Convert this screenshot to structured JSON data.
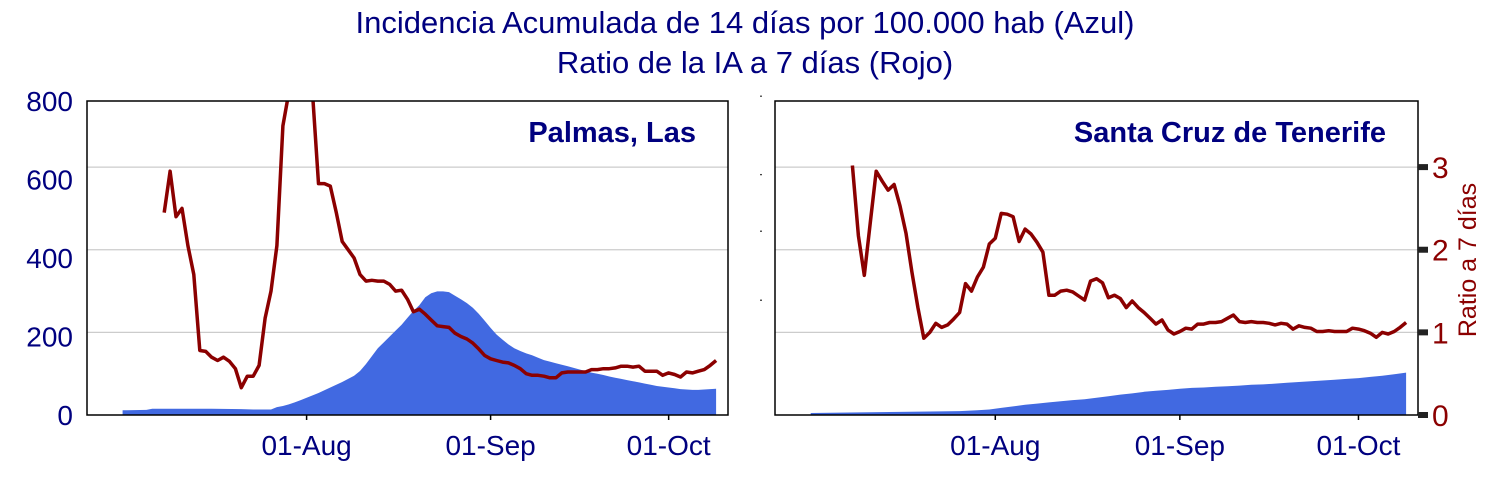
{
  "title_line1": "Incidencia Acumulada de 14 días por 100.000 hab (Azul)",
  "title_line2": "Ratio de la IA a 7 días (Rojo)",
  "colors": {
    "title": "#00007f",
    "incidence": "#4169e1",
    "ratio": "#8b0000",
    "grid": "#cccccc",
    "axis": "#000000"
  },
  "chart_data": [
    {
      "type": "area",
      "panel_label": "Palmas, Las",
      "x_tick_labels": [
        "01-Aug",
        "01-Sep",
        "01-Oct"
      ],
      "x_tick_days": [
        31,
        62,
        92
      ],
      "xlim": [
        -6,
        102
      ],
      "y_left_ticks": [
        "0",
        "200",
        "400",
        "600",
        "800"
      ],
      "y_left_values": [
        0,
        200,
        400,
        600,
        800
      ],
      "y_left_lim": [
        0,
        800
      ],
      "y_right_lim": [
        0,
        3.8
      ],
      "grid_y_ratio": [
        1,
        2,
        3
      ],
      "incidence_series": {
        "x": [
          0,
          4,
          5,
          6,
          10,
          15,
          20,
          22,
          25,
          26,
          27,
          28,
          29,
          30,
          33,
          35,
          37,
          39,
          40,
          41,
          42,
          43,
          44,
          45,
          46,
          47,
          48,
          49,
          50,
          51,
          52,
          53,
          54,
          55,
          56,
          57,
          58,
          59,
          60,
          61,
          62,
          63,
          64,
          65,
          66,
          67,
          68,
          69,
          70,
          71,
          72,
          73,
          74,
          75,
          76,
          77,
          78,
          79,
          80,
          81,
          82,
          83,
          84,
          85,
          86,
          87,
          88,
          89,
          90,
          91,
          92,
          93,
          94,
          95,
          96,
          97,
          98,
          99,
          100
        ],
        "values": [
          12,
          13,
          16,
          16,
          16,
          16,
          15,
          14,
          14,
          20,
          23,
          27,
          32,
          38,
          56,
          70,
          84,
          100,
          112,
          130,
          150,
          170,
          185,
          200,
          215,
          230,
          248,
          265,
          280,
          300,
          310,
          315,
          315,
          313,
          304,
          295,
          285,
          273,
          258,
          240,
          222,
          205,
          192,
          180,
          170,
          163,
          157,
          152,
          146,
          140,
          136,
          132,
          128,
          124,
          120,
          116,
          112,
          108,
          105,
          102,
          98,
          95,
          92,
          89,
          86,
          83,
          80,
          77,
          74,
          72,
          70,
          68,
          66,
          65,
          64,
          64,
          65,
          66,
          67
        ]
      },
      "ratio_series": {
        "x": [
          7,
          8,
          9,
          10,
          11,
          12,
          13,
          14,
          15,
          16,
          17,
          18,
          19,
          20,
          21,
          22,
          23,
          24,
          25,
          26,
          27,
          28,
          29,
          30,
          31,
          32,
          33,
          34,
          35,
          36,
          37,
          38,
          39,
          40,
          41,
          42,
          43,
          44,
          45,
          46,
          47,
          48,
          49,
          50,
          51,
          52,
          53,
          54,
          55,
          56,
          57,
          58,
          59,
          60,
          61,
          62,
          63,
          64,
          65,
          66,
          67,
          68,
          69,
          70,
          71,
          72,
          73,
          74,
          75,
          76,
          77,
          78,
          79,
          80,
          81,
          82,
          83,
          84,
          85,
          86,
          87,
          88,
          89,
          90,
          91,
          92,
          93,
          94,
          95,
          96,
          97,
          98,
          99,
          100
        ],
        "values": [
          2.45,
          2.95,
          2.4,
          2.5,
          2.05,
          1.7,
          0.78,
          0.77,
          0.7,
          0.66,
          0.7,
          0.65,
          0.56,
          0.33,
          0.47,
          0.47,
          0.6,
          1.17,
          1.5,
          2.05,
          3.5,
          3.9,
          3.9,
          3.9,
          3.9,
          3.9,
          2.8,
          2.8,
          2.77,
          2.45,
          2.1,
          2.0,
          1.9,
          1.7,
          1.62,
          1.63,
          1.62,
          1.62,
          1.58,
          1.5,
          1.51,
          1.4,
          1.25,
          1.28,
          1.22,
          1.15,
          1.08,
          1.07,
          1.06,
          0.99,
          0.95,
          0.92,
          0.87,
          0.8,
          0.72,
          0.68,
          0.66,
          0.64,
          0.63,
          0.6,
          0.56,
          0.5,
          0.48,
          0.48,
          0.47,
          0.45,
          0.45,
          0.51,
          0.52,
          0.52,
          0.52,
          0.52,
          0.55,
          0.55,
          0.56,
          0.56,
          0.57,
          0.59,
          0.59,
          0.58,
          0.59,
          0.53,
          0.53,
          0.53,
          0.48,
          0.51,
          0.49,
          0.46,
          0.52,
          0.51,
          0.53,
          0.55,
          0.6,
          0.66
        ]
      }
    },
    {
      "type": "area",
      "panel_label": "Santa Cruz de Tenerife",
      "x_tick_labels": [
        "01-Aug",
        "01-Sep",
        "01-Oct"
      ],
      "x_tick_days": [
        31,
        62,
        92
      ],
      "xlim": [
        -6,
        102
      ],
      "y_left_lim": [
        0,
        800
      ],
      "y_right_ticks": [
        "0",
        "1",
        "2",
        "3"
      ],
      "y_right_values": [
        0,
        1,
        2,
        3
      ],
      "y_right_label": "Ratio a 7 días",
      "y_right_lim": [
        0,
        3.8
      ],
      "grid_y_ratio": [
        1,
        2,
        3
      ],
      "incidence_series": {
        "x": [
          0,
          5,
          10,
          15,
          20,
          25,
          28,
          30,
          32,
          34,
          36,
          38,
          40,
          42,
          44,
          46,
          48,
          50,
          52,
          54,
          56,
          58,
          60,
          62,
          64,
          66,
          68,
          70,
          72,
          74,
          76,
          78,
          80,
          82,
          84,
          86,
          88,
          90,
          92,
          94,
          96,
          98,
          100
        ],
        "values": [
          5,
          6,
          7,
          8,
          9,
          10,
          12,
          14,
          18,
          22,
          26,
          29,
          32,
          35,
          38,
          40,
          44,
          48,
          52,
          55,
          59,
          62,
          64,
          67,
          69,
          70,
          72,
          73,
          75,
          77,
          78,
          80,
          82,
          84,
          86,
          88,
          90,
          92,
          94,
          97,
          100,
          104,
          108
        ]
      },
      "ratio_series": {
        "x": [
          7,
          8,
          9,
          10,
          11,
          12,
          13,
          14,
          15,
          16,
          17,
          18,
          19,
          20,
          21,
          22,
          23,
          24,
          25,
          26,
          27,
          28,
          29,
          30,
          31,
          32,
          33,
          34,
          35,
          36,
          37,
          38,
          39,
          40,
          41,
          42,
          43,
          44,
          45,
          46,
          47,
          48,
          49,
          50,
          51,
          52,
          53,
          54,
          55,
          56,
          57,
          58,
          59,
          60,
          61,
          62,
          63,
          64,
          65,
          66,
          67,
          68,
          69,
          70,
          71,
          72,
          73,
          74,
          75,
          76,
          77,
          78,
          79,
          80,
          81,
          82,
          83,
          84,
          85,
          86,
          87,
          88,
          89,
          90,
          91,
          92,
          93,
          94,
          95,
          96,
          97,
          98,
          99,
          100
        ],
        "values": [
          3.02,
          2.17,
          1.69,
          2.33,
          2.95,
          2.83,
          2.72,
          2.79,
          2.53,
          2.2,
          1.73,
          1.3,
          0.93,
          1.0,
          1.11,
          1.06,
          1.09,
          1.16,
          1.24,
          1.59,
          1.5,
          1.67,
          1.79,
          2.07,
          2.14,
          2.44,
          2.43,
          2.4,
          2.1,
          2.25,
          2.19,
          2.09,
          1.97,
          1.45,
          1.45,
          1.5,
          1.51,
          1.49,
          1.44,
          1.39,
          1.62,
          1.65,
          1.6,
          1.42,
          1.45,
          1.41,
          1.3,
          1.38,
          1.3,
          1.24,
          1.17,
          1.1,
          1.15,
          1.03,
          0.98,
          1.01,
          1.05,
          1.04,
          1.1,
          1.1,
          1.12,
          1.12,
          1.13,
          1.17,
          1.21,
          1.13,
          1.12,
          1.13,
          1.12,
          1.12,
          1.11,
          1.09,
          1.11,
          1.1,
          1.04,
          1.08,
          1.06,
          1.05,
          1.01,
          1.01,
          1.02,
          1.01,
          1.01,
          1.01,
          1.05,
          1.04,
          1.02,
          0.99,
          0.94,
          1.0,
          0.98,
          1.01,
          1.06,
          1.12
        ]
      }
    }
  ]
}
